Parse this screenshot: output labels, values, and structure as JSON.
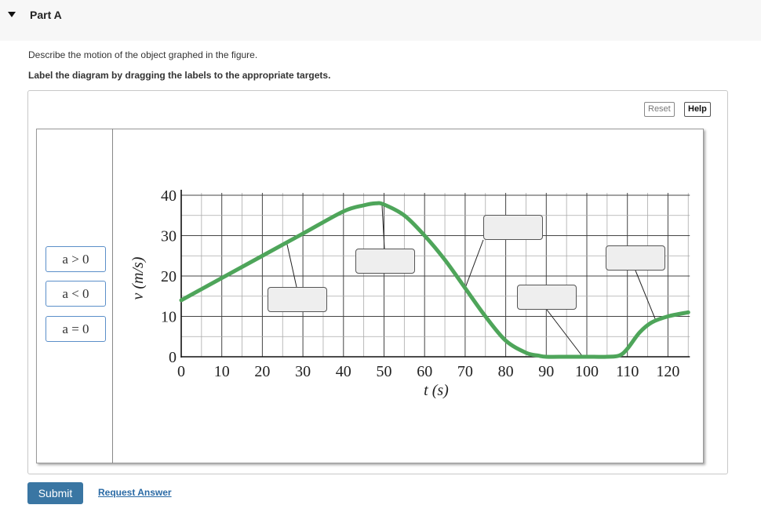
{
  "part": {
    "title": "Part A"
  },
  "instructions": {
    "describe": "Describe the motion of the object graphed in the figure.",
    "label": "Label the diagram by dragging the labels to the appropriate targets."
  },
  "toolbar": {
    "reset_label": "Reset",
    "help_label": "Help"
  },
  "labels": [
    "a > 0",
    "a < 0",
    "a = 0"
  ],
  "footer": {
    "submit_label": "Submit",
    "request_label": "Request Answer"
  },
  "chart_data": {
    "type": "line",
    "xlabel": "t (s)",
    "ylabel": "v (m/s)",
    "xlim": [
      0,
      125
    ],
    "ylim": [
      0,
      40
    ],
    "xticks": [
      0,
      10,
      20,
      30,
      40,
      50,
      60,
      70,
      80,
      90,
      100,
      110,
      120
    ],
    "yticks": [
      0,
      10,
      20,
      30,
      40
    ],
    "grid": true,
    "line_color": "#4ea55a",
    "series": [
      {
        "x": [
          0,
          10,
          20,
          30,
          40,
          45,
          48,
          50,
          55,
          60,
          65,
          70,
          75,
          80,
          85,
          88,
          90,
          95,
          100,
          105,
          108,
          110,
          113,
          116,
          120,
          125
        ],
        "y": [
          14,
          19.5,
          25,
          30.5,
          36,
          37.5,
          38,
          37.7,
          35,
          30,
          24,
          17,
          10,
          4,
          1,
          0.3,
          0,
          0,
          0,
          0,
          0.3,
          2,
          6,
          8.5,
          10,
          11
        ]
      }
    ]
  }
}
